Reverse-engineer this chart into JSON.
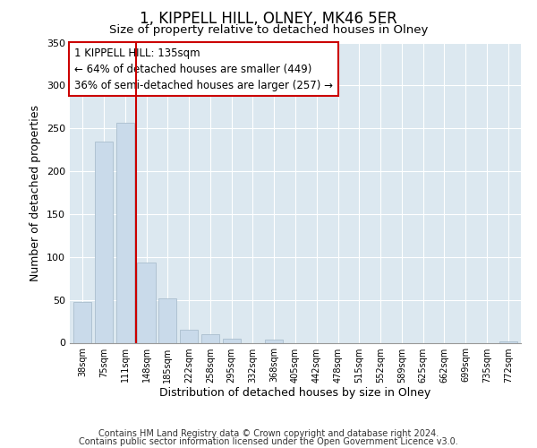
{
  "title": "1, KIPPELL HILL, OLNEY, MK46 5ER",
  "subtitle": "Size of property relative to detached houses in Olney",
  "xlabel": "Distribution of detached houses by size in Olney",
  "ylabel": "Number of detached properties",
  "bar_labels": [
    "38sqm",
    "75sqm",
    "111sqm",
    "148sqm",
    "185sqm",
    "222sqm",
    "258sqm",
    "295sqm",
    "332sqm",
    "368sqm",
    "405sqm",
    "442sqm",
    "478sqm",
    "515sqm",
    "552sqm",
    "589sqm",
    "625sqm",
    "662sqm",
    "699sqm",
    "735sqm",
    "772sqm"
  ],
  "bar_values": [
    48,
    235,
    257,
    94,
    52,
    15,
    10,
    5,
    0,
    4,
    0,
    0,
    0,
    0,
    0,
    0,
    0,
    0,
    0,
    0,
    2
  ],
  "bar_color": "#c9daea",
  "bar_edgecolor": "#aabece",
  "vline_color": "#cc0000",
  "vline_position": 2.5,
  "annotation_text": "1 KIPPELL HILL: 135sqm\n← 64% of detached houses are smaller (449)\n36% of semi-detached houses are larger (257) →",
  "annotation_box_edgecolor": "#cc0000",
  "annotation_fontsize": 8.5,
  "ylim": [
    0,
    350
  ],
  "yticks": [
    0,
    50,
    100,
    150,
    200,
    250,
    300,
    350
  ],
  "footer_line1": "Contains HM Land Registry data © Crown copyright and database right 2024.",
  "footer_line2": "Contains public sector information licensed under the Open Government Licence v3.0.",
  "background_color": "#ffffff",
  "plot_background": "#dce8f0",
  "grid_color": "#ffffff",
  "title_fontsize": 12,
  "subtitle_fontsize": 9.5,
  "footer_fontsize": 7
}
